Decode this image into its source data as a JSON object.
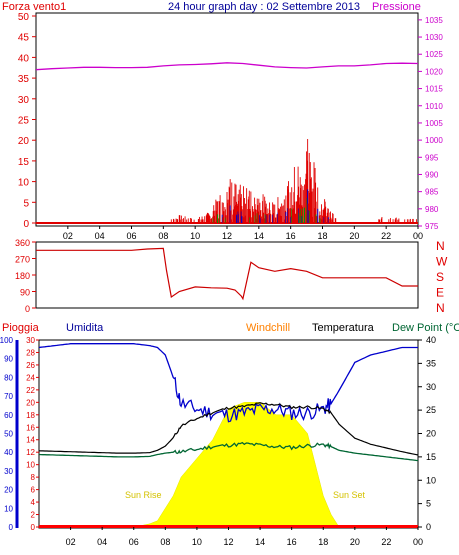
{
  "title": "24 hour graph day : 02 Settembre 2013",
  "colors": {
    "wind": "#e00000",
    "pressure": "#cc00cc",
    "humidity": "#0000cc",
    "windchill": "#ff8000",
    "temperature": "#000000",
    "dewpoint": "#006633",
    "rain": "#ff0000",
    "solar": "#ffff00"
  },
  "time_ticks": [
    "02",
    "04",
    "06",
    "08",
    "10",
    "12",
    "14",
    "16",
    "18",
    "20",
    "22",
    "00"
  ],
  "top_panel": {
    "left_label": "Forza vento1",
    "right_label": "Pressione",
    "left_ticks": [
      "0",
      "5",
      "10",
      "15",
      "20",
      "25",
      "30",
      "35",
      "40",
      "45",
      "50"
    ],
    "right_ticks": [
      "975",
      "980",
      "985",
      "990",
      "995",
      "1000",
      "1005",
      "1010",
      "1015",
      "1020",
      "1025",
      "1030",
      "1035"
    ]
  },
  "dir_panel": {
    "left_ticks": [
      "0",
      "90",
      "180",
      "270",
      "360"
    ],
    "compass": [
      "N",
      "W",
      "S",
      "E",
      "N"
    ]
  },
  "bottom_panel": {
    "labels": {
      "rain": "Pioggia",
      "humidity": "Umidita",
      "windchill": "Windchill",
      "temperature": "Temperatura",
      "dewpoint": "Dew Point (°C"
    },
    "humidity_ticks": [
      "0",
      "10",
      "20",
      "30",
      "40",
      "50",
      "60",
      "70",
      "80",
      "90",
      "100"
    ],
    "rain_ticks": [
      "0",
      "2",
      "4",
      "6",
      "8",
      "10",
      "12",
      "14",
      "16",
      "18",
      "20",
      "22",
      "24",
      "26",
      "28",
      "30"
    ],
    "temp_ticks": [
      "0",
      "5",
      "10",
      "15",
      "20",
      "25",
      "30",
      "35",
      "40"
    ],
    "sun_rise": "Sun Rise",
    "sun_set": "Sun Set"
  },
  "chart_data": [
    {
      "type": "line",
      "x_hours": [
        0,
        1,
        2,
        3,
        4,
        5,
        6,
        7,
        8,
        9,
        10,
        11,
        12,
        13,
        14,
        15,
        16,
        17,
        18,
        19,
        20,
        21,
        22,
        23,
        24
      ],
      "series": [
        {
          "name": "Pressione",
          "axis": "right",
          "values": [
            1020.5,
            1020.8,
            1021.0,
            1021.2,
            1021.2,
            1021.1,
            1021.1,
            1021.2,
            1021.6,
            1021.9,
            1022.0,
            1022.2,
            1022.5,
            1022.3,
            1021.8,
            1021.3,
            1021.1,
            1021.0,
            1021.3,
            1021.6,
            1021.6,
            1021.9,
            1022.3,
            1022.4,
            1022.3
          ]
        },
        {
          "name": "Forza vento1",
          "axis": "left",
          "values": [
            0,
            0,
            0,
            0,
            0,
            0,
            0,
            0,
            0,
            2,
            1,
            3,
            12,
            9,
            8,
            5,
            12,
            22,
            7,
            0,
            0,
            0,
            2,
            1,
            1
          ]
        }
      ],
      "ylim_left": [
        0,
        50
      ],
      "ylim_right": [
        975,
        1037
      ]
    },
    {
      "type": "line",
      "x_hours": [
        0,
        2,
        4,
        6,
        7,
        8,
        8.2,
        8.5,
        9,
        10,
        11,
        12,
        12.5,
        12.9,
        13,
        13.5,
        14,
        15,
        16,
        17,
        18,
        19,
        20,
        22,
        23,
        24
      ],
      "series": [
        {
          "name": "direction",
          "values": [
            315,
            315,
            315,
            315,
            322,
            325,
            205,
            60,
            90,
            115,
            110,
            108,
            98,
            65,
            50,
            250,
            220,
            200,
            215,
            200,
            165,
            165,
            165,
            165,
            120,
            120
          ]
        }
      ],
      "ylim": [
        0,
        360
      ]
    },
    {
      "type": "area",
      "x_hours": [
        0,
        1,
        2,
        3,
        4,
        5,
        6,
        7,
        7.5,
        8,
        8.5,
        9,
        10,
        11,
        12,
        13,
        14,
        15,
        16,
        17,
        18,
        18.5,
        19,
        20,
        21,
        22,
        23,
        24
      ],
      "series": [
        {
          "name": "Umidita",
          "axis": "humidity",
          "values": [
            96,
            97,
            98,
            98,
            98,
            98,
            98,
            97,
            96,
            92,
            80,
            66,
            63,
            61,
            60,
            61,
            63,
            63,
            61,
            61,
            63,
            66,
            73,
            88,
            92,
            94,
            96,
            96
          ]
        },
        {
          "name": "Temperatura",
          "axis": "temp",
          "values": [
            16.3,
            16.2,
            16.1,
            16.0,
            15.9,
            15.8,
            15.8,
            15.9,
            16.4,
            17.3,
            19.1,
            21.6,
            23.2,
            24.5,
            25.5,
            25.8,
            26.4,
            26.2,
            25.6,
            25.7,
            25.3,
            24.4,
            22.0,
            19.0,
            17.7,
            16.9,
            16.1,
            15.4
          ]
        },
        {
          "name": "Dew Point (°C",
          "axis": "temp",
          "values": [
            15.5,
            15.4,
            15.3,
            15.2,
            15.1,
            15.0,
            15.0,
            15.1,
            15.5,
            15.8,
            16.0,
            16.1,
            16.6,
            17.2,
            17.5,
            17.8,
            17.5,
            17.2,
            17.0,
            17.4,
            17.6,
            17.2,
            16.4,
            15.8,
            15.4,
            15.0,
            14.6,
            14.2
          ]
        },
        {
          "name": "solar",
          "axis": "rain",
          "values": [
            0,
            0,
            0,
            0,
            0,
            0,
            0,
            0.5,
            1,
            3,
            5,
            8,
            11,
            14,
            19,
            20,
            20,
            18,
            18,
            15,
            5,
            2,
            0,
            0,
            0,
            0,
            0,
            0
          ]
        }
      ],
      "ylim_humidity": [
        0,
        100
      ],
      "ylim_rain": [
        0,
        30
      ],
      "ylim_temp": [
        0,
        40
      ]
    }
  ]
}
